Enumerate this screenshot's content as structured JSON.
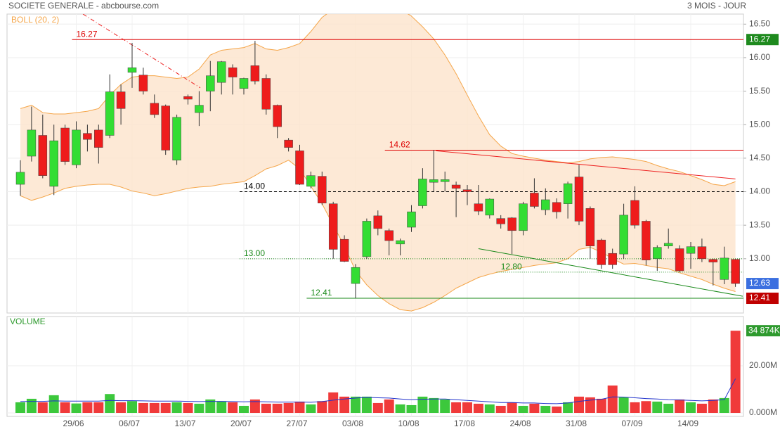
{
  "chart_data": [
    {
      "type": "candlestick",
      "title": "SOCIETE GENERALE - abcbourse.com",
      "subtitle": "3 MOIS - JOUR",
      "open": [
        14.11,
        14.53,
        14.84,
        14.08,
        14.95,
        14.4,
        14.87,
        14.92,
        14.84,
        15.49,
        15.78,
        15.74,
        15.32,
        15.28,
        14.47,
        15.42,
        15.18,
        15.5,
        15.63,
        15.85,
        15.54,
        15.88,
        15.69,
        15.29,
        14.77,
        14.61,
        14.08,
        14.23,
        13.82,
        13.29,
        12.63,
        13.03,
        13.64,
        13.42,
        13.22,
        13.47,
        13.79,
        14.14,
        14.15,
        14.1,
        14.03,
        13.82,
        13.65,
        13.6,
        13.61,
        13.42,
        13.98,
        13.73,
        13.84,
        13.82,
        14.22,
        13.75,
        13.28,
        13.08,
        13.07,
        13.87,
        13.56,
        13.0,
        13.19,
        13.15,
        13.08,
        13.18,
        12.99,
        12.69,
        12.99
      ],
      "high": [
        14.47,
        15.27,
        15.15,
        15.0,
        15.0,
        15.05,
        15.0,
        15.0,
        15.75,
        15.6,
        16.22,
        15.85,
        15.45,
        15.3,
        15.15,
        15.45,
        15.5,
        15.95,
        15.95,
        15.9,
        15.7,
        16.25,
        15.75,
        15.3,
        14.8,
        14.7,
        14.3,
        14.3,
        13.85,
        13.35,
        12.92,
        13.6,
        13.72,
        13.45,
        13.3,
        13.8,
        14.35,
        14.62,
        14.3,
        14.15,
        14.1,
        14.1,
        13.9,
        13.65,
        13.62,
        13.85,
        14.2,
        14.05,
        13.9,
        14.15,
        14.4,
        13.78,
        13.3,
        13.15,
        13.82,
        14.08,
        13.58,
        13.2,
        13.45,
        13.2,
        13.25,
        13.3,
        13.0,
        13.18,
        13.0
      ],
      "low": [
        13.94,
        14.45,
        14.2,
        13.95,
        14.4,
        14.35,
        14.6,
        14.42,
        14.8,
        15.0,
        15.55,
        15.45,
        15.1,
        14.55,
        14.4,
        15.3,
        14.98,
        15.2,
        15.45,
        15.45,
        15.45,
        15.6,
        15.15,
        14.8,
        14.6,
        14.1,
        14.05,
        13.8,
        13.0,
        12.95,
        12.41,
        13.0,
        13.35,
        13.05,
        13.05,
        13.4,
        13.75,
        14.0,
        14.0,
        13.62,
        13.8,
        13.65,
        13.6,
        13.45,
        13.07,
        13.35,
        13.75,
        13.65,
        13.6,
        13.6,
        13.5,
        13.0,
        12.85,
        12.85,
        13.0,
        13.45,
        12.9,
        12.82,
        13.15,
        12.8,
        12.85,
        12.95,
        12.6,
        12.62,
        12.58
      ],
      "close": [
        14.29,
        14.92,
        14.24,
        14.76,
        14.45,
        14.92,
        14.78,
        14.66,
        15.49,
        15.24,
        15.85,
        15.5,
        15.15,
        14.62,
        15.11,
        15.38,
        15.29,
        15.73,
        15.94,
        15.71,
        15.69,
        15.65,
        15.23,
        14.97,
        14.66,
        14.11,
        14.24,
        13.83,
        13.14,
        12.96,
        12.87,
        13.56,
        13.45,
        13.27,
        13.27,
        13.7,
        14.19,
        14.18,
        14.18,
        14.05,
        14.0,
        13.71,
        13.89,
        13.52,
        13.42,
        13.82,
        13.78,
        13.88,
        13.7,
        14.12,
        13.56,
        13.19,
        12.91,
        12.91,
        13.65,
        13.5,
        12.98,
        13.17,
        13.23,
        12.82,
        13.18,
        13.0,
        12.95,
        13.01,
        12.63
      ],
      "up_color": "#33dd33",
      "down_color": "#ee1c1c",
      "bollinger": {
        "label": "BOLL (20, 2)",
        "color": "#f5a64a",
        "fill": "#fde3cc",
        "upper": [
          15.24,
          15.29,
          15.18,
          15.16,
          15.16,
          15.18,
          15.2,
          15.24,
          15.44,
          15.6,
          15.71,
          15.73,
          15.73,
          15.71,
          15.69,
          15.71,
          15.83,
          16.04,
          16.11,
          16.13,
          16.15,
          16.21,
          16.13,
          16.11,
          16.15,
          16.21,
          16.39,
          16.6,
          16.72,
          16.78,
          16.8,
          16.8,
          16.8,
          16.78,
          16.72,
          16.62,
          16.46,
          16.28,
          16.04,
          15.76,
          15.44,
          15.13,
          14.85,
          14.68,
          14.57,
          14.53,
          14.5,
          14.47,
          14.45,
          14.43,
          14.45,
          14.49,
          14.51,
          14.52,
          14.5,
          14.48,
          14.45,
          14.39,
          14.34,
          14.3,
          14.24,
          14.18,
          14.11,
          14.09,
          14.15
        ],
        "lower": [
          13.94,
          13.87,
          13.92,
          13.98,
          14.05,
          14.08,
          14.1,
          14.11,
          14.11,
          14.07,
          14.01,
          13.98,
          13.94,
          13.97,
          14.01,
          14.05,
          14.07,
          14.08,
          14.11,
          14.13,
          14.15,
          14.24,
          14.34,
          14.39,
          14.47,
          14.34,
          14.08,
          13.82,
          13.5,
          13.19,
          12.82,
          12.61,
          12.45,
          12.33,
          12.24,
          12.22,
          12.27,
          12.35,
          12.45,
          12.56,
          12.64,
          12.72,
          12.77,
          12.81,
          12.84,
          12.87,
          12.9,
          12.92,
          12.94,
          13.0,
          13.14,
          13.17,
          13.1,
          13.0,
          12.92,
          12.93,
          12.9,
          12.87,
          12.85,
          12.79,
          12.74,
          12.69,
          12.62,
          12.56,
          12.51
        ]
      },
      "levels": [
        {
          "value": 16.27,
          "from": 5,
          "color": "#dd0000",
          "dash": "none"
        },
        {
          "value": 14.62,
          "from": 33,
          "color": "#dd0000",
          "dash": "none"
        },
        {
          "value": 14,
          "label": "14.00",
          "from": 20,
          "color": "#000000",
          "dash": "4 3"
        },
        {
          "value": 13,
          "label": "13.00",
          "from": 20,
          "color": "#1a8a1a",
          "dash": "1 2"
        },
        {
          "value": 12.8,
          "label": "12.80",
          "from": 43,
          "color": "#1a8a1a",
          "dash": "1 2"
        },
        {
          "value": 12.41,
          "from": 26,
          "color": "#1a8a1a",
          "dash": "none"
        }
      ],
      "trendlines": [
        {
          "points": [
            [
              5.6,
              16.65
            ],
            [
              16.1,
              15.55
            ]
          ],
          "color": "#ee2222",
          "dash": "6 3 1 3"
        },
        {
          "points": [
            [
              37.2,
              14.61
            ],
            [
              64,
              14.19
            ]
          ],
          "color": "#ee2222",
          "dash": "none"
        },
        {
          "points": [
            [
              41,
              13.15
            ],
            [
              64.65,
              12.44
            ]
          ],
          "color": "#1a8a1a",
          "dash": "none"
        }
      ],
      "price_tags": [
        {
          "value": 16.27,
          "color": "#1e8a1e"
        },
        {
          "value": 12.63,
          "color": "#3b6fe0"
        },
        {
          "value": 12.41,
          "color": "#c00000"
        }
      ],
      "ylim": [
        12.19,
        16.65
      ],
      "yticks": [
        {
          "value": 13,
          "label": "13.00"
        },
        {
          "value": 13.5,
          "label": "13.50"
        },
        {
          "value": 14,
          "label": "14.00"
        },
        {
          "value": 14.5,
          "label": "14.50"
        },
        {
          "value": 15,
          "label": "15.00"
        },
        {
          "value": 15.5,
          "label": "15.50"
        },
        {
          "value": 16,
          "label": "16.00"
        },
        {
          "value": 16.5,
          "label": "16.50"
        }
      ],
      "grid": true
    },
    {
      "type": "bar",
      "title": "VOLUME",
      "categories": [
        null,
        null,
        null,
        null,
        null,
        "29/06",
        null,
        null,
        null,
        null,
        "06/07",
        null,
        null,
        null,
        null,
        "13/07",
        null,
        null,
        null,
        null,
        "20/07",
        null,
        null,
        null,
        null,
        "27/07",
        null,
        null,
        null,
        null,
        "03/08",
        null,
        null,
        null,
        null,
        "10/08",
        null,
        null,
        null,
        null,
        "17/08",
        null,
        null,
        null,
        null,
        "24/08",
        null,
        null,
        null,
        null,
        "31/08",
        null,
        null,
        null,
        null,
        "07/09",
        null,
        null,
        null,
        null,
        "14/09",
        null,
        null,
        null,
        null
      ],
      "values": [
        4.5,
        6,
        4.5,
        7.5,
        4.5,
        4,
        4.5,
        4.5,
        8,
        4.5,
        5,
        4.2,
        4.2,
        4.2,
        4.5,
        4.2,
        3.9,
        5.7,
        4.8,
        4.5,
        3,
        5.7,
        3.9,
        3.9,
        4.2,
        4.8,
        3.6,
        5,
        8.7,
        6.9,
        6.9,
        6.9,
        4.2,
        5.7,
        3.6,
        3.3,
        6.9,
        6.3,
        5.7,
        4.5,
        4.5,
        3.9,
        3.6,
        3,
        4.5,
        3,
        3.9,
        3,
        2.7,
        4.5,
        6.9,
        6.6,
        6,
        11.6,
        6.6,
        4.5,
        5,
        4.8,
        3.9,
        5.7,
        4.5,
        3.9,
        5.7,
        6.3,
        34.874
      ],
      "value_labels": [
        null,
        null,
        null,
        null,
        null,
        null,
        null,
        null,
        null,
        null,
        null,
        null,
        null,
        null,
        null,
        null,
        null,
        null,
        null,
        null,
        null,
        null,
        null,
        null,
        null,
        null,
        null,
        null,
        null,
        null,
        null,
        null,
        null,
        null,
        null,
        null,
        null,
        null,
        null,
        null,
        null,
        null,
        null,
        null,
        null,
        null,
        null,
        null,
        null,
        null,
        null,
        null,
        null,
        null,
        null,
        null,
        null,
        null,
        null,
        null,
        null,
        null,
        null,
        null,
        "34 874K"
      ],
      "up_color": "#3cc83c",
      "down_color": "#f03a3a",
      "label_color": "#2e9a2e",
      "average": {
        "color": "#2233cc",
        "values": [
          4.8,
          4.9,
          4.9,
          5.1,
          5.0,
          5.0,
          5.0,
          5.0,
          5.3,
          5.2,
          5.2,
          5.1,
          5.0,
          5.0,
          5.0,
          4.9,
          4.8,
          4.9,
          4.9,
          4.8,
          4.7,
          4.8,
          4.7,
          4.6,
          4.6,
          4.6,
          4.5,
          4.8,
          5.4,
          5.9,
          6.3,
          6.6,
          6.4,
          6.3,
          5.9,
          5.6,
          5.8,
          5.9,
          5.9,
          5.6,
          5.3,
          5.0,
          4.7,
          4.4,
          4.4,
          4.2,
          4.2,
          4.0,
          3.9,
          4.2,
          4.9,
          5.4,
          5.8,
          6.8,
          6.7,
          6.4,
          6.1,
          5.9,
          5.6,
          5.5,
          5.3,
          5.1,
          5.3,
          5.6,
          14.5
        ]
      },
      "ylim": [
        0,
        40.3
      ],
      "yticks": [
        {
          "value": 0,
          "label": "0.000M"
        },
        {
          "value": 20,
          "label": "20.00M"
        }
      ],
      "grid": true
    }
  ]
}
